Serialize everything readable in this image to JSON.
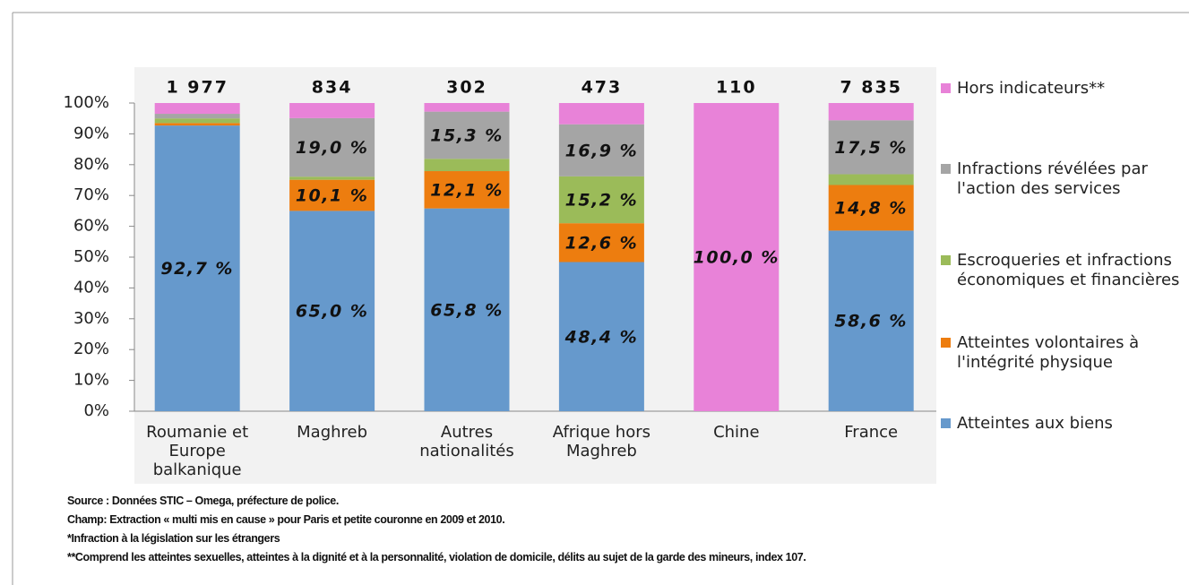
{
  "chart_data": {
    "type": "stacked_bar",
    "categories": [
      "Roumanie et Europe balkanique",
      "Maghreb",
      "Autres nationalités",
      "Afrique hors Maghreb",
      "Chine",
      "France"
    ],
    "totals": {
      "values": [
        1977,
        834,
        302,
        473,
        110,
        7835
      ],
      "value_labels": [
        "1 977",
        "834",
        "302",
        "473",
        "110",
        "7 835"
      ]
    },
    "series": [
      {
        "name": "Atteintes aux biens",
        "color": "#6699cc",
        "values": [
          92.7,
          65.0,
          65.8,
          48.4,
          0,
          58.6
        ],
        "value_labels": [
          "92,7 %",
          "65,0 %",
          "65,8 %",
          "48,4 %",
          null,
          "58,6 %"
        ]
      },
      {
        "name": "Atteintes volontaires à l'intégrité physique",
        "color": "#ed7d0f",
        "values": [
          0.8,
          10.1,
          12.1,
          12.6,
          0,
          14.8
        ],
        "value_labels": [
          null,
          "10,1 %",
          "12,1 %",
          "12,6 %",
          null,
          "14,8 %"
        ]
      },
      {
        "name": "Escroqueries et infractions économiques et financières",
        "color": "#9bbb59",
        "values": [
          1.5,
          1.0,
          4.0,
          15.2,
          0,
          3.5
        ],
        "value_labels": [
          null,
          null,
          null,
          "15,2 %",
          null,
          null
        ]
      },
      {
        "name": "Infractions révélées par l'action des services",
        "color": "#a5a5a5",
        "values": [
          1.5,
          19.0,
          15.3,
          16.9,
          0,
          17.5
        ],
        "value_labels": [
          null,
          "19,0 %",
          "15,3 %",
          "16,9 %",
          null,
          "17,5 %"
        ]
      },
      {
        "name": "Hors indicateurs**",
        "color": "#e882d8",
        "values": [
          3.5,
          4.9,
          2.8,
          6.9,
          100.0,
          5.6
        ],
        "value_labels": [
          null,
          null,
          null,
          null,
          "100,0 %",
          null
        ]
      }
    ],
    "ylim": [
      0,
      100
    ],
    "yticks": [
      {
        "value": 0,
        "label": "0%"
      },
      {
        "value": 10,
        "label": "10%"
      },
      {
        "value": 20,
        "label": "20%"
      },
      {
        "value": 30,
        "label": "30%"
      },
      {
        "value": 40,
        "label": "40%"
      },
      {
        "value": 50,
        "label": "50%"
      },
      {
        "value": 60,
        "label": "60%"
      },
      {
        "value": 70,
        "label": "70%"
      },
      {
        "value": 80,
        "label": "80%"
      },
      {
        "value": 90,
        "label": "90%"
      },
      {
        "value": 100,
        "label": "100%"
      }
    ],
    "legend": "right",
    "notes": [
      "Source : Données STIC – Omega, préfecture de police.",
      "Champ: Extraction « multi mis en cause » pour Paris et petite couronne en 2009 et 2010.",
      "*Infraction à la législation sur les étrangers",
      "**Comprend les atteintes sexuelles, atteintes à la dignité et à la personnalité, violation de domicile, délits au sujet de la garde des mineurs, index 107."
    ]
  }
}
